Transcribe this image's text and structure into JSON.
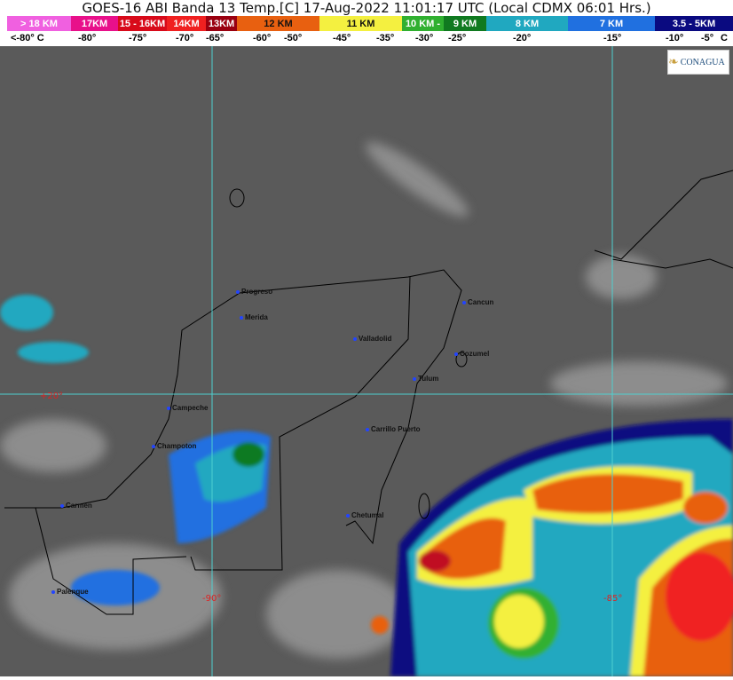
{
  "title": "GOES-16 ABI Banda 13 Temp.[C] 17-Aug-2022 11:01:17 UTC (Local CDMX  06:01 Hrs.)",
  "scale": [
    {
      "label": "> 18 KM",
      "color": "#f060e0"
    },
    {
      "label": "17KM",
      "color": "#e8108a"
    },
    {
      "label": "15 - 16KM",
      "color": "#d80a1a"
    },
    {
      "label": "14KM",
      "color": "#f02020"
    },
    {
      "label": "13KM",
      "color": "#9a0010"
    },
    {
      "label": "12 KM",
      "color": "#e86010"
    },
    {
      "label": "11 KM",
      "color": "#f4f040"
    },
    {
      "label": "10 KM - ",
      "color": "#30b030"
    },
    {
      "label": "9 KM",
      "color": "#107a20"
    },
    {
      "label": "8 KM",
      "color": "#20a8c0"
    },
    {
      "label": "7 KM",
      "color": "#2070e0"
    },
    {
      "label": "3.5 - 5KM",
      "color": "#0a0a80"
    }
  ],
  "temps": [
    "<-80° C",
    "-80°",
    "-75°",
    "-70°",
    "-65°",
    "-60°",
    "-50°",
    "-45°",
    "-35°",
    "-30°",
    "-25°",
    "-20°",
    "-15°",
    "-10°",
    "-5°",
    "C"
  ],
  "logo": "CONAGUA",
  "cities": [
    "Progreso",
    "Merida",
    "Valladolid",
    "Cancun",
    "Cozumel",
    "Tulum",
    "Campeche",
    "Champoton",
    "Carrillo Puerto",
    "Carmen",
    "Chetumal",
    "Palenque"
  ],
  "grid_labels": [
    "+20°",
    "-90°",
    "-85°"
  ]
}
